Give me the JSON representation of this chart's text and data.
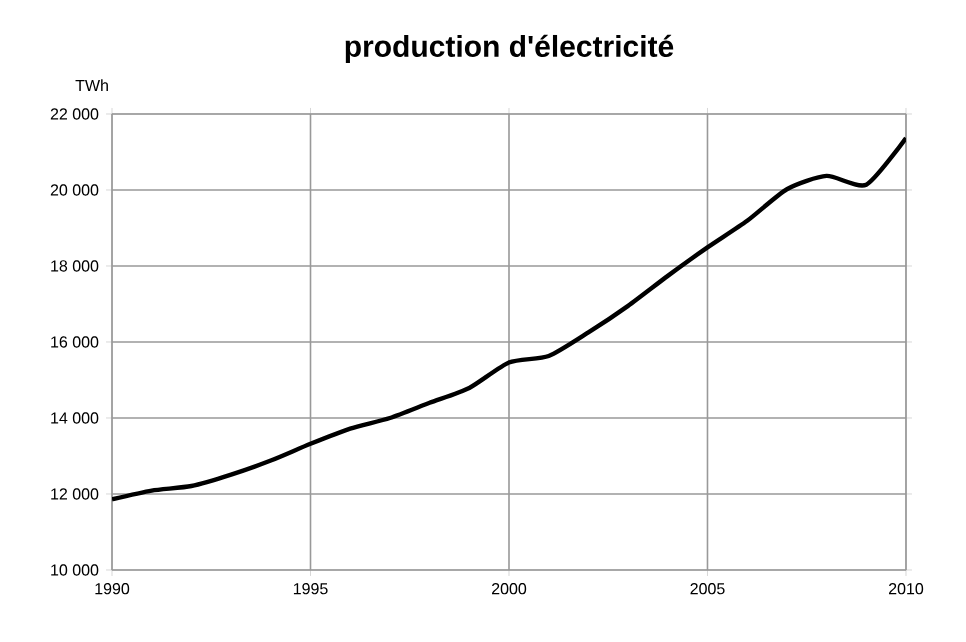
{
  "chart_data": {
    "type": "line",
    "title": "production d'électricité",
    "ylabel": "TWh",
    "x": [
      1990,
      1991,
      1992,
      1993,
      1994,
      1995,
      1996,
      1997,
      1998,
      1999,
      2000,
      2001,
      2002,
      2003,
      2004,
      2005,
      2006,
      2007,
      2008,
      2009,
      2010
    ],
    "series": [
      {
        "color": "#000000",
        "values": [
          11860,
          12090,
          12210,
          12510,
          12880,
          13320,
          13720,
          14000,
          14400,
          14790,
          15460,
          15630,
          16250,
          16950,
          17740,
          18490,
          19190,
          20020,
          20370,
          20140,
          21370
        ]
      }
    ],
    "xlim": [
      1990,
      2010
    ],
    "xticks": [
      1990,
      1995,
      2000,
      2005,
      2010
    ],
    "ylim": [
      10000,
      22000
    ],
    "yticks": [
      {
        "value": 10000,
        "label": "10 000"
      },
      {
        "value": 12000,
        "label": "12 000"
      },
      {
        "value": 14000,
        "label": "14 000"
      },
      {
        "value": 16000,
        "label": "16 000"
      },
      {
        "value": 18000,
        "label": "18 000"
      },
      {
        "value": 20000,
        "label": "20 000"
      },
      {
        "value": 22000,
        "label": "22 000"
      }
    ],
    "grid": true,
    "legend": false,
    "marker": "none",
    "line_style": "solid"
  }
}
